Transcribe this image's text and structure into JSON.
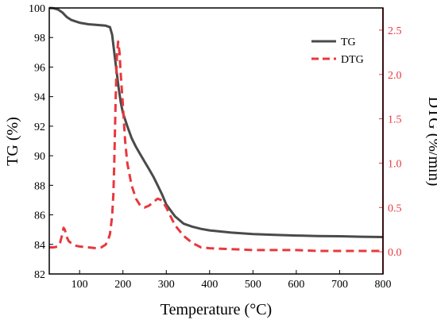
{
  "chart_data": {
    "type": "line",
    "xlabel": "Temperature (°C)",
    "ylabel_left": "TG (%)",
    "ylabel_right": "DTG (%/min)",
    "xlim": [
      30,
      800
    ],
    "ylim_left": [
      82,
      100
    ],
    "ylim_right": [
      -0.25,
      2.75
    ],
    "x_ticks": [
      100,
      200,
      300,
      400,
      500,
      600,
      700,
      800
    ],
    "y_left_ticks": [
      82,
      84,
      86,
      88,
      90,
      92,
      94,
      96,
      98,
      100
    ],
    "y_right_ticks": [
      0.0,
      0.5,
      1.0,
      1.5,
      2.0,
      2.5
    ],
    "y_right_tick_labels": [
      "0.0",
      "0.5",
      "1.0",
      "1.5",
      "2.0",
      "2.5"
    ],
    "grid": false,
    "legend_position": "top-right",
    "colors": {
      "tg": "#4a4a4a",
      "dtg": "#e8383d",
      "frame": "#000000"
    },
    "series": [
      {
        "name": "TG",
        "axis": "left",
        "style": "solid",
        "x": [
          30,
          40,
          50,
          60,
          70,
          80,
          90,
          100,
          120,
          140,
          160,
          170,
          175,
          180,
          185,
          190,
          195,
          200,
          210,
          220,
          230,
          240,
          250,
          260,
          270,
          280,
          290,
          300,
          320,
          340,
          360,
          380,
          400,
          450,
          500,
          550,
          600,
          650,
          700,
          750,
          800
        ],
        "y": [
          100.0,
          99.98,
          99.9,
          99.7,
          99.4,
          99.2,
          99.1,
          99.0,
          98.9,
          98.85,
          98.8,
          98.7,
          98.2,
          97.0,
          95.8,
          94.6,
          93.6,
          92.9,
          92.0,
          91.2,
          90.6,
          90.1,
          89.6,
          89.1,
          88.6,
          88.0,
          87.4,
          86.7,
          85.9,
          85.4,
          85.2,
          85.05,
          84.95,
          84.8,
          84.7,
          84.65,
          84.6,
          84.57,
          84.55,
          84.52,
          84.5
        ]
      },
      {
        "name": "DTG",
        "axis": "right",
        "style": "dashed",
        "x": [
          30,
          40,
          50,
          55,
          60,
          63,
          66,
          70,
          75,
          80,
          90,
          100,
          120,
          140,
          150,
          160,
          165,
          170,
          175,
          178,
          180,
          183,
          186,
          189,
          192,
          195,
          200,
          205,
          210,
          220,
          230,
          240,
          250,
          260,
          270,
          280,
          290,
          300,
          310,
          320,
          340,
          360,
          380,
          400,
          450,
          500,
          550,
          600,
          650,
          700,
          750,
          800
        ],
        "y": [
          0.05,
          0.05,
          0.06,
          0.1,
          0.2,
          0.27,
          0.25,
          0.17,
          0.12,
          0.1,
          0.07,
          0.06,
          0.05,
          0.04,
          0.05,
          0.08,
          0.12,
          0.2,
          0.4,
          0.65,
          1.0,
          1.7,
          2.2,
          2.37,
          2.25,
          2.0,
          1.65,
          1.25,
          1.0,
          0.75,
          0.6,
          0.52,
          0.5,
          0.52,
          0.56,
          0.6,
          0.58,
          0.5,
          0.4,
          0.3,
          0.18,
          0.1,
          0.05,
          0.04,
          0.03,
          0.02,
          0.02,
          0.02,
          0.01,
          0.01,
          0.01,
          0.01
        ]
      }
    ]
  }
}
